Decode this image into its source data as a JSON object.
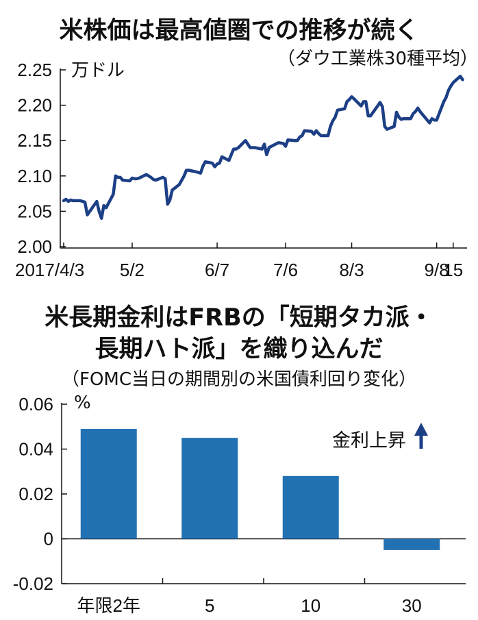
{
  "chart_data": [
    {
      "type": "line",
      "title": "米株価は最高値圏での推移が続く",
      "subtitle": "（ダウ工業株30種平均）",
      "ylabel": "万ドル",
      "ylim": [
        2.0,
        2.25
      ],
      "yticks": [
        "2.25",
        "2.20",
        "2.15",
        "2.10",
        "2.05",
        "2.00"
      ],
      "xtick_labels": [
        "2017/4/3",
        "5/2",
        "6/7",
        "7/6",
        "8/3",
        "9/8",
        "15"
      ],
      "xtick_dates": [
        "2017-04-03",
        "2017-05-02",
        "2017-06-07",
        "2017-07-06",
        "2017-08-03",
        "2017-09-08",
        "2017-09-15"
      ],
      "x_range": [
        "2017-04-03",
        "2017-09-20"
      ],
      "line_color": "#1c3f86",
      "series": [
        {
          "x": [
            "2017-04-03",
            "2017-04-04",
            "2017-04-05",
            "2017-04-06",
            "2017-04-07",
            "2017-04-10",
            "2017-04-11",
            "2017-04-12",
            "2017-04-13",
            "2017-04-17",
            "2017-04-18",
            "2017-04-19",
            "2017-04-20",
            "2017-04-21",
            "2017-04-24",
            "2017-04-25",
            "2017-04-26",
            "2017-04-27",
            "2017-04-28",
            "2017-05-01",
            "2017-05-02",
            "2017-05-03",
            "2017-05-04",
            "2017-05-05",
            "2017-05-08",
            "2017-05-09",
            "2017-05-10",
            "2017-05-11",
            "2017-05-12",
            "2017-05-15",
            "2017-05-16",
            "2017-05-17",
            "2017-05-18",
            "2017-05-19",
            "2017-05-22",
            "2017-05-23",
            "2017-05-24",
            "2017-05-25",
            "2017-05-26",
            "2017-05-30",
            "2017-05-31",
            "2017-06-01",
            "2017-06-02",
            "2017-06-05",
            "2017-06-06",
            "2017-06-07",
            "2017-06-08",
            "2017-06-09",
            "2017-06-12",
            "2017-06-13",
            "2017-06-14",
            "2017-06-15",
            "2017-06-16",
            "2017-06-19",
            "2017-06-20",
            "2017-06-21",
            "2017-06-22",
            "2017-06-23",
            "2017-06-26",
            "2017-06-27",
            "2017-06-28",
            "2017-06-29",
            "2017-06-30",
            "2017-07-03",
            "2017-07-05",
            "2017-07-06",
            "2017-07-07",
            "2017-07-10",
            "2017-07-11",
            "2017-07-12",
            "2017-07-13",
            "2017-07-14",
            "2017-07-17",
            "2017-07-18",
            "2017-07-19",
            "2017-07-20",
            "2017-07-21",
            "2017-07-24",
            "2017-07-25",
            "2017-07-26",
            "2017-07-27",
            "2017-07-28",
            "2017-07-31",
            "2017-08-01",
            "2017-08-02",
            "2017-08-03",
            "2017-08-04",
            "2017-08-07",
            "2017-08-08",
            "2017-08-09",
            "2017-08-10",
            "2017-08-11",
            "2017-08-14",
            "2017-08-15",
            "2017-08-16",
            "2017-08-17",
            "2017-08-18",
            "2017-08-21",
            "2017-08-22",
            "2017-08-23",
            "2017-08-24",
            "2017-08-25",
            "2017-08-28",
            "2017-08-29",
            "2017-08-30",
            "2017-08-31",
            "2017-09-01",
            "2017-09-05",
            "2017-09-06",
            "2017-09-07",
            "2017-09-08",
            "2017-09-11",
            "2017-09-12",
            "2017-09-13",
            "2017-09-14",
            "2017-09-15",
            "2017-09-18",
            "2017-09-19"
          ],
          "values": [
            2.065,
            2.067,
            2.064,
            2.066,
            2.065,
            2.065,
            2.064,
            2.063,
            2.045,
            2.064,
            2.05,
            2.04,
            2.058,
            2.055,
            2.074,
            2.1,
            2.098,
            2.098,
            2.094,
            2.093,
            2.097,
            2.096,
            2.096,
            2.097,
            2.102,
            2.1,
            2.098,
            2.095,
            2.094,
            2.098,
            2.096,
            2.06,
            2.066,
            2.08,
            2.088,
            2.094,
            2.1,
            2.108,
            2.108,
            2.105,
            2.104,
            2.114,
            2.12,
            2.118,
            2.113,
            2.117,
            2.118,
            2.127,
            2.122,
            2.13,
            2.138,
            2.138,
            2.14,
            2.15,
            2.145,
            2.14,
            2.14,
            2.14,
            2.138,
            2.145,
            2.13,
            2.14,
            2.142,
            2.147,
            2.146,
            2.142,
            2.151,
            2.15,
            2.15,
            2.155,
            2.157,
            2.164,
            2.163,
            2.159,
            2.164,
            2.16,
            2.157,
            2.157,
            2.17,
            2.178,
            2.183,
            2.193,
            2.195,
            2.205,
            2.208,
            2.212,
            2.209,
            2.199,
            2.205,
            2.205,
            2.185,
            2.185,
            2.199,
            2.204,
            2.198,
            2.17,
            2.166,
            2.17,
            2.19,
            2.183,
            2.18,
            2.181,
            2.181,
            2.188,
            2.191,
            2.196,
            2.191,
            2.175,
            2.181,
            2.179,
            2.179,
            2.205,
            2.211,
            2.221,
            2.227,
            2.232,
            2.241,
            2.236
          ]
        }
      ]
    },
    {
      "type": "bar",
      "title": "米長期金利はFRBの「短期タカ派・",
      "title_line2": "長期ハト派」を織り込んだ",
      "subtitle": "（FOMC当日の期間別の米国債利回り変化）",
      "ylabel": "%",
      "ylim": [
        -0.02,
        0.06
      ],
      "yticks": [
        "0.06",
        "0.04",
        "0.02",
        "0",
        "-0.02"
      ],
      "categories": [
        "年限2年",
        "5",
        "10",
        "30"
      ],
      "values": [
        0.049,
        0.045,
        0.028,
        -0.005
      ],
      "bar_color": "#2271b3",
      "annotation": "金利上昇",
      "arrow_color": "#1c3f86"
    }
  ]
}
